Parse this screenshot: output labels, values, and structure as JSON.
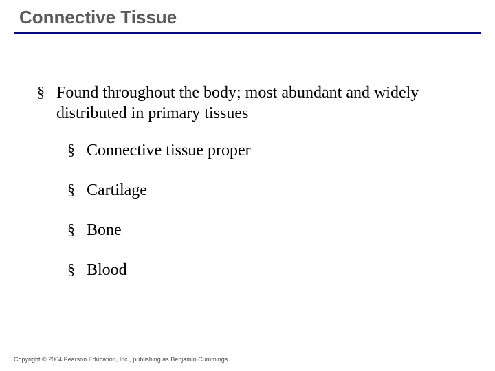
{
  "slide": {
    "title": "Connective Tissue",
    "title_color": "#5a5a5a",
    "title_fontsize": 26,
    "rule_color": "#0a0a80",
    "rule_width": 3,
    "background_color": "#ffffff",
    "bullet_glyph": "§",
    "bullets": [
      {
        "text": "Found throughout the body; most abundant and widely distributed in primary tissues",
        "children": [
          {
            "text": "Connective tissue proper"
          },
          {
            "text": "Cartilage"
          },
          {
            "text": "Bone"
          },
          {
            "text": "Blood"
          }
        ]
      }
    ],
    "body_fontsize": 24,
    "body_color": "#000000",
    "copyright": "Copyright © 2004 Pearson Education, Inc., publishing as Benjamin Cummings"
  }
}
